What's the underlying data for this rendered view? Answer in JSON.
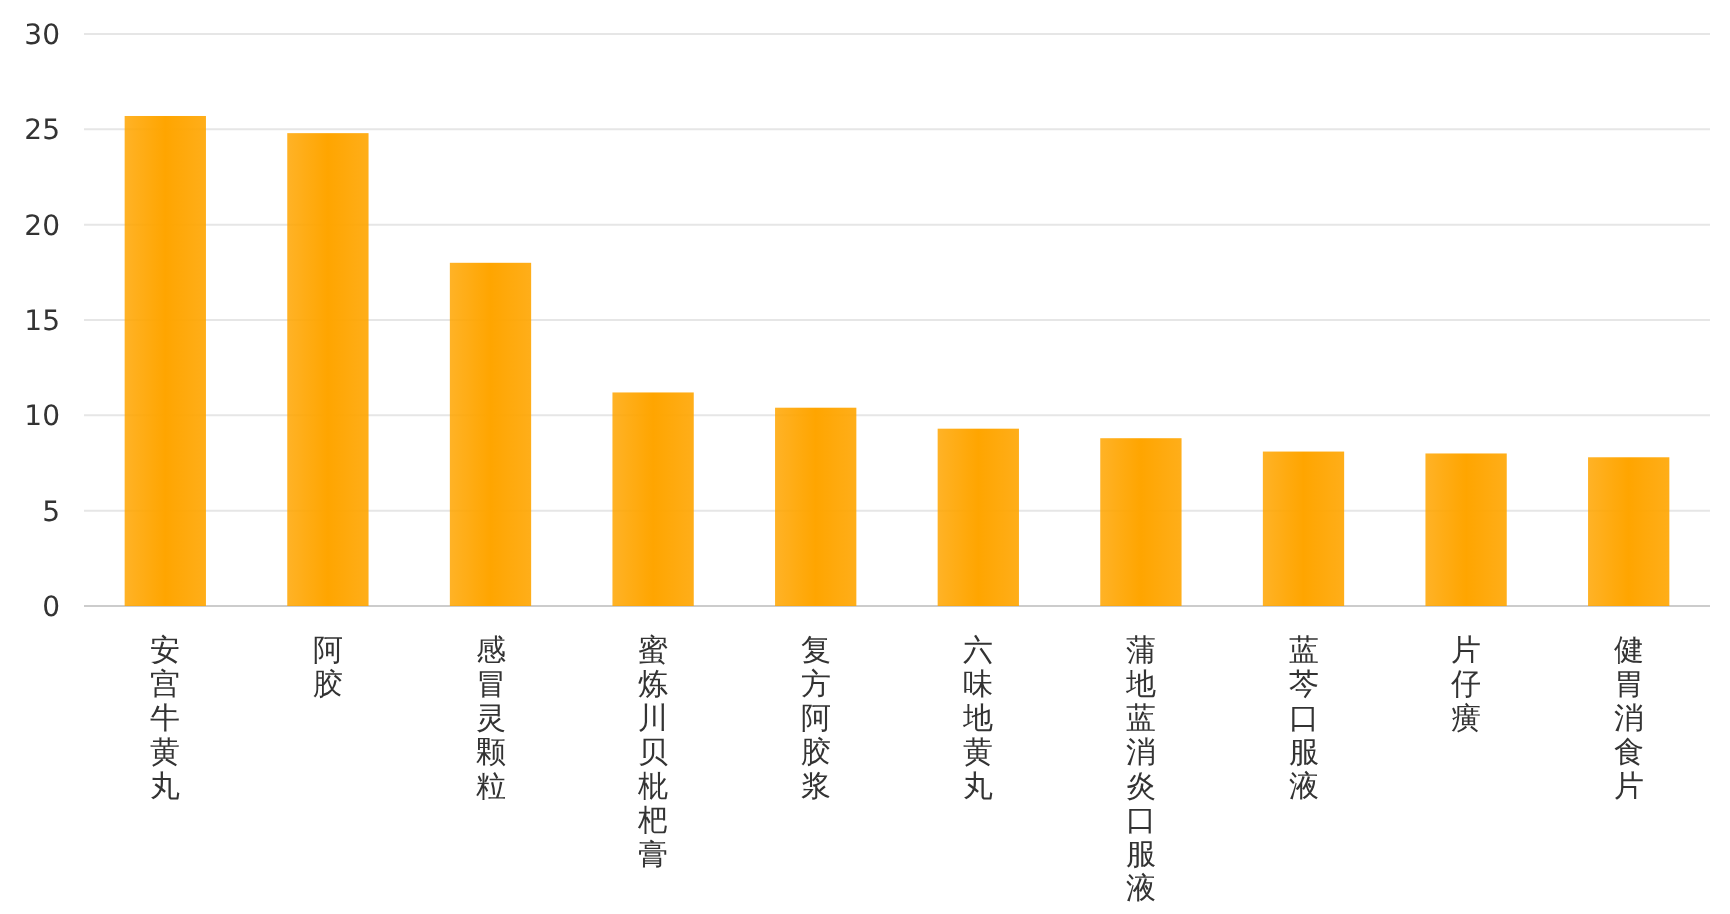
{
  "chart_data": {
    "type": "bar",
    "categories": [
      "安宫牛黄丸",
      "阿胶",
      "感冒灵颗粒",
      "蜜炼川贝枇杷膏",
      "复方阿胶浆",
      "六味地黄丸",
      "蒲地蓝消炎口服液",
      "蓝芩口服液",
      "片仔癀",
      "健胃消食片"
    ],
    "values": [
      25.7,
      24.8,
      18.0,
      11.2,
      10.4,
      9.3,
      8.8,
      8.1,
      8.0,
      7.8
    ],
    "color": "#ffa500",
    "ylim": [
      0,
      30
    ],
    "yticks": [
      0,
      5,
      10,
      15,
      20,
      25,
      30
    ],
    "grid": "y"
  }
}
